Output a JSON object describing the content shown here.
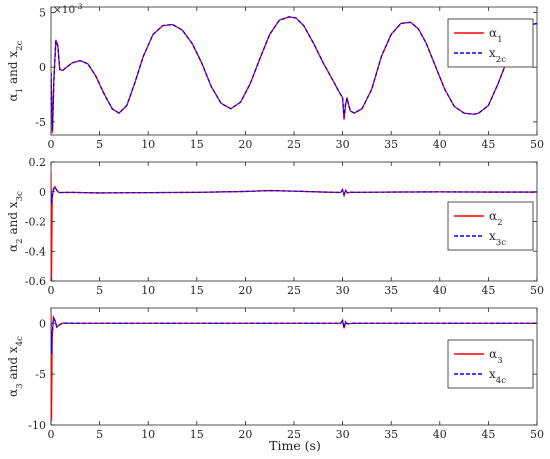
{
  "xlabel": "Time (s)",
  "colors": {
    "alpha": "#ff0000",
    "x": "#0000ff",
    "axis": "#262626",
    "legend_border": "#262626"
  },
  "chart_data": [
    {
      "type": "line",
      "ylabel": {
        "base": "α",
        "sub": "1",
        "mid": " and x",
        "sub2": "2c"
      },
      "exponent": {
        "base": "×10",
        "power": "-3"
      },
      "xlim": [
        0,
        50
      ],
      "ylim": [
        -0.0062,
        0.0055
      ],
      "xticks": [
        "0",
        "5",
        "10",
        "15",
        "20",
        "25",
        "30",
        "35",
        "40",
        "45",
        "50"
      ],
      "yticks": [
        {
          "v": 0.005,
          "label": "5"
        },
        {
          "v": 0,
          "label": "0"
        },
        {
          "v": -0.005,
          "label": "-5"
        }
      ],
      "legend_position": "top-right",
      "series": [
        {
          "name": {
            "base": "α",
            "sub": "1"
          },
          "style": "solid",
          "x": [
            0,
            0.15,
            0.3,
            0.5,
            0.7,
            0.9,
            1.2,
            1.6,
            2.2,
            3.0,
            3.8,
            4.6,
            5.5,
            6.3,
            7.0,
            7.8,
            8.6,
            9.5,
            10.5,
            11.5,
            12.5,
            13.5,
            14.5,
            15.5,
            16.5,
            17.5,
            18.5,
            19.5,
            20.5,
            21.5,
            22.5,
            23.5,
            24.5,
            25.2,
            26.0,
            27.0,
            28.0,
            29.0,
            29.6,
            30.0,
            30.15,
            30.3,
            30.45,
            30.6,
            30.8,
            31.2,
            32.0,
            33.0,
            34.0,
            35.0,
            36.0,
            37.0,
            37.8,
            38.6,
            39.5,
            40.5,
            41.5,
            42.5,
            43.5,
            44.0,
            45.0,
            46.0,
            47.0,
            48.0,
            49.0,
            50.0
          ],
          "y": [
            -0.0005,
            -0.006,
            -0.001,
            0.0025,
            0.002,
            -0.0002,
            -0.0003,
            0.0,
            0.0004,
            0.0006,
            0.0003,
            -0.0008,
            -0.0025,
            -0.0038,
            -0.0042,
            -0.0035,
            -0.0015,
            0.001,
            0.003,
            0.0038,
            0.0039,
            0.0034,
            0.0022,
            0.0004,
            -0.0018,
            -0.0033,
            -0.0038,
            -0.0032,
            -0.0015,
            0.0008,
            0.003,
            0.0043,
            0.0046,
            0.0045,
            0.0038,
            0.0022,
            0.0004,
            -0.0012,
            -0.0022,
            -0.0028,
            -0.0048,
            -0.0035,
            -0.0028,
            -0.0034,
            -0.004,
            -0.0042,
            -0.0038,
            -0.002,
            0.001,
            0.003,
            0.004,
            0.0041,
            0.0035,
            0.0022,
            0.0002,
            -0.002,
            -0.0036,
            -0.0042,
            -0.0043,
            -0.0042,
            -0.0035,
            -0.0015,
            0.0008,
            0.0028,
            0.0038,
            0.004
          ]
        },
        {
          "name": {
            "base": "x",
            "sub": "2c"
          },
          "style": "dashed",
          "x": [
            0,
            0.15,
            0.3,
            0.5,
            0.7,
            0.9,
            1.2,
            1.6,
            2.2,
            3.0,
            3.8,
            4.6,
            5.5,
            6.3,
            7.0,
            7.8,
            8.6,
            9.5,
            10.5,
            11.5,
            12.5,
            13.5,
            14.5,
            15.5,
            16.5,
            17.5,
            18.5,
            19.5,
            20.5,
            21.5,
            22.5,
            23.5,
            24.5,
            25.2,
            26.0,
            27.0,
            28.0,
            29.0,
            29.6,
            30.0,
            30.15,
            30.3,
            30.45,
            30.6,
            30.8,
            31.2,
            32.0,
            33.0,
            34.0,
            35.0,
            36.0,
            37.0,
            37.8,
            38.6,
            39.5,
            40.5,
            41.5,
            42.5,
            43.5,
            44.0,
            45.0,
            46.0,
            47.0,
            48.0,
            49.0,
            50.0
          ],
          "y": [
            -0.0005,
            -0.0058,
            -0.0012,
            0.0024,
            0.0019,
            -0.0002,
            -0.0003,
            0.0,
            0.0004,
            0.0006,
            0.0003,
            -0.0008,
            -0.0025,
            -0.0038,
            -0.0042,
            -0.0035,
            -0.0015,
            0.001,
            0.003,
            0.0038,
            0.0039,
            0.0034,
            0.0022,
            0.0004,
            -0.0018,
            -0.0033,
            -0.0038,
            -0.0032,
            -0.0015,
            0.0008,
            0.003,
            0.0043,
            0.0046,
            0.0045,
            0.0038,
            0.0022,
            0.0004,
            -0.0012,
            -0.0022,
            -0.0028,
            -0.0046,
            -0.0034,
            -0.0028,
            -0.0034,
            -0.004,
            -0.0042,
            -0.0038,
            -0.002,
            0.001,
            0.003,
            0.004,
            0.0041,
            0.0035,
            0.0022,
            0.0002,
            -0.002,
            -0.0036,
            -0.0042,
            -0.0043,
            -0.0042,
            -0.0035,
            -0.0015,
            0.0008,
            0.0028,
            0.0038,
            0.004
          ]
        }
      ]
    },
    {
      "type": "line",
      "ylabel": {
        "base": "α",
        "sub": "2",
        "mid": " and x",
        "sub2": "3c"
      },
      "xlim": [
        0,
        50
      ],
      "ylim": [
        -0.6,
        0.2
      ],
      "xticks": [
        "0",
        "5",
        "10",
        "15",
        "20",
        "25",
        "30",
        "35",
        "40",
        "45",
        "50"
      ],
      "yticks": [
        {
          "v": 0.2,
          "label": "0.2"
        },
        {
          "v": 0,
          "label": "0"
        },
        {
          "v": -0.2,
          "label": "-0.2"
        },
        {
          "v": -0.4,
          "label": "-0.4"
        },
        {
          "v": -0.6,
          "label": "-0.6"
        }
      ],
      "legend_position": "right",
      "series": [
        {
          "name": {
            "base": "α",
            "sub": "2"
          },
          "style": "solid",
          "x": [
            0,
            0.05,
            0.12,
            0.25,
            0.4,
            0.6,
            0.8,
            1.2,
            2.0,
            5.0,
            10.0,
            15.0,
            20.0,
            22.5,
            25.0,
            28.0,
            29.8,
            30.0,
            30.15,
            30.3,
            30.5,
            30.8,
            31.5,
            35.0,
            40.0,
            45.0,
            50.0
          ],
          "y": [
            0.13,
            -0.6,
            -0.05,
            0.02,
            0.035,
            0.01,
            -0.005,
            -0.005,
            -0.004,
            -0.008,
            -0.006,
            -0.004,
            0.002,
            0.008,
            0.004,
            -0.002,
            -0.005,
            0.015,
            -0.025,
            0.01,
            -0.008,
            -0.003,
            -0.004,
            -0.002,
            -0.001,
            -0.002,
            -0.002
          ]
        },
        {
          "name": {
            "base": "x",
            "sub": "3c"
          },
          "style": "dashed",
          "x": [
            0,
            0.05,
            0.12,
            0.25,
            0.4,
            0.6,
            0.8,
            1.2,
            2.0,
            5.0,
            10.0,
            15.0,
            20.0,
            22.5,
            25.0,
            28.0,
            29.8,
            30.0,
            30.15,
            30.3,
            30.5,
            30.8,
            31.5,
            35.0,
            40.0,
            45.0,
            50.0
          ],
          "y": [
            0.0,
            -0.08,
            -0.03,
            0.015,
            0.03,
            0.01,
            -0.005,
            -0.005,
            -0.004,
            -0.008,
            -0.006,
            -0.004,
            0.002,
            0.008,
            0.004,
            -0.002,
            -0.005,
            0.012,
            -0.02,
            0.008,
            -0.008,
            -0.003,
            -0.004,
            -0.002,
            -0.001,
            -0.002,
            -0.002
          ]
        }
      ]
    },
    {
      "type": "line",
      "ylabel": {
        "base": "α",
        "sub": "3",
        "mid": " and x",
        "sub2": "4c"
      },
      "xlim": [
        0,
        50
      ],
      "ylim": [
        -10,
        1.5
      ],
      "xticks": [
        "0",
        "5",
        "10",
        "15",
        "20",
        "25",
        "30",
        "35",
        "40",
        "45",
        "50"
      ],
      "yticks": [
        {
          "v": 0,
          "label": "0"
        },
        {
          "v": -5,
          "label": "-5"
        },
        {
          "v": -10,
          "label": "-10"
        }
      ],
      "legend_position": "right",
      "series": [
        {
          "name": {
            "base": "α",
            "sub": "3"
          },
          "style": "solid",
          "x": [
            0,
            0.05,
            0.12,
            0.25,
            0.4,
            0.6,
            0.8,
            1.2,
            2.0,
            10.0,
            20.0,
            29.8,
            30.0,
            30.15,
            30.3,
            30.5,
            31.0,
            40.0,
            50.0
          ],
          "y": [
            0.9,
            -9.6,
            -1.5,
            0.6,
            0.3,
            -0.4,
            -0.2,
            0.02,
            0.0,
            0.0,
            0.0,
            0.0,
            0.3,
            -0.5,
            0.15,
            -0.05,
            0.0,
            0.0,
            0.0
          ]
        },
        {
          "name": {
            "base": "x",
            "sub": "4c"
          },
          "style": "dashed",
          "x": [
            0,
            0.05,
            0.12,
            0.25,
            0.4,
            0.6,
            0.8,
            1.2,
            2.0,
            10.0,
            20.0,
            29.8,
            30.0,
            30.15,
            30.3,
            30.5,
            31.0,
            40.0,
            50.0
          ],
          "y": [
            0.0,
            -3.0,
            -1.0,
            0.5,
            0.3,
            -0.35,
            -0.2,
            0.02,
            0.0,
            0.0,
            0.0,
            0.0,
            0.25,
            -0.45,
            0.12,
            -0.05,
            0.0,
            0.0,
            0.0
          ]
        }
      ]
    }
  ]
}
